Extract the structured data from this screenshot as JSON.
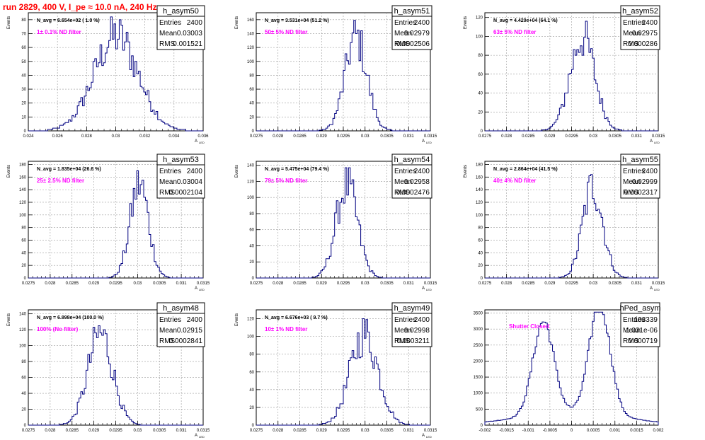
{
  "page_title": "run 2829,   400 V, I_pe ≈ 10.0 nA, 240 Hz",
  "chart_data": [
    {
      "type": "histogram",
      "title": "h_asym50",
      "ylabel": "Events",
      "xlabel": "A",
      "xlabel_sub": "LED",
      "stats": {
        "Entries": "2400",
        "Mean": "0.03003",
        "RMS": "0.001521"
      },
      "navg": "N_avg = 6.654e+02 ( 1.0 %)",
      "filter_label": "1± 0.1% ND filter",
      "xlim": [
        0.024,
        0.036
      ],
      "ylim": [
        0,
        85
      ],
      "xticks": [
        "0.024",
        "0.026",
        "0.028",
        "0.03",
        "0.032",
        "0.034",
        "0.036"
      ],
      "yticks": [
        "0",
        "10",
        "20",
        "30",
        "40",
        "50",
        "60",
        "70",
        "80"
      ],
      "mean": 0.03003,
      "rms": 0.001521,
      "entries": 2400,
      "peak": 83
    },
    {
      "type": "histogram",
      "title": "h_asym51",
      "ylabel": "Events",
      "xlabel": "A",
      "xlabel_sub": "LED",
      "stats": {
        "Entries": "2400",
        "Mean": "0.02979",
        "RMS": "0.0002506"
      },
      "navg": "N_avg = 3.531e+04 (51.2 %)",
      "filter_label": "50± 5% ND filter",
      "xlim": [
        0.0275,
        0.0315
      ],
      "ylim": [
        0,
        170
      ],
      "xticks": [
        "0.0275",
        "0.028",
        "0.0285",
        "0.029",
        "0.0295",
        "0.03",
        "0.0305",
        "0.031",
        "0.0315"
      ],
      "yticks": [
        "0",
        "20",
        "40",
        "60",
        "80",
        "100",
        "120",
        "140",
        "160"
      ],
      "mean": 0.02979,
      "rms": 0.0002506,
      "entries": 2400,
      "peak": 165
    },
    {
      "type": "histogram",
      "title": "h_asym52",
      "ylabel": "Events",
      "xlabel": "A",
      "xlabel_sub": "LED",
      "stats": {
        "Entries": "2400",
        "Mean": "0.02975",
        "RMS": "0.000286"
      },
      "navg": "N_avg = 4.420e+04 (64.1 %)",
      "filter_label": "63± 5% ND filter",
      "xlim": [
        0.0275,
        0.0315
      ],
      "ylim": [
        0,
        125
      ],
      "xticks": [
        "0.0275",
        "0.028",
        "0.0285",
        "0.029",
        "0.0295",
        "0.03",
        "0.0305",
        "0.031",
        "0.0315"
      ],
      "yticks": [
        "0",
        "20",
        "40",
        "60",
        "80",
        "100",
        "120"
      ],
      "mean": 0.02975,
      "rms": 0.000286,
      "entries": 2400,
      "peak": 120
    },
    {
      "type": "histogram",
      "title": "h_asym53",
      "ylabel": "Events",
      "xlabel": "A",
      "xlabel_sub": "LED",
      "stats": {
        "Entries": "2400",
        "Mean": "0.03004",
        "RMS": "0.0002104"
      },
      "navg": "N_avg = 1.835e+04 (26.6 %)",
      "filter_label": "25± 2.5% ND filter",
      "xlim": [
        0.0275,
        0.0315
      ],
      "ylim": [
        0,
        185
      ],
      "xticks": [
        "0.0275",
        "0.028",
        "0.0285",
        "0.029",
        "0.0295",
        "0.03",
        "0.0305",
        "0.031",
        "0.0315"
      ],
      "yticks": [
        "0",
        "20",
        "40",
        "60",
        "80",
        "100",
        "120",
        "140",
        "160",
        "180"
      ],
      "mean": 0.03004,
      "rms": 0.0002104,
      "entries": 2400,
      "peak": 182
    },
    {
      "type": "histogram",
      "title": "h_asym54",
      "ylabel": "Events",
      "xlabel": "A",
      "xlabel_sub": "LED",
      "stats": {
        "Entries": "2400",
        "Mean": "0.02958",
        "RMS": "0.0002476"
      },
      "navg": "N_avg = 5.475e+04 (79.4 %)",
      "filter_label": "79± 5% ND filter",
      "xlim": [
        0.0275,
        0.0315
      ],
      "ylim": [
        0,
        145
      ],
      "xticks": [
        "0.0275",
        "0.028",
        "0.0285",
        "0.029",
        "0.0295",
        "0.03",
        "0.0305",
        "0.031",
        "0.0315"
      ],
      "yticks": [
        "0",
        "20",
        "40",
        "60",
        "80",
        "100",
        "120",
        "140"
      ],
      "mean": 0.02958,
      "rms": 0.0002476,
      "entries": 2400,
      "peak": 140
    },
    {
      "type": "histogram",
      "title": "h_asym55",
      "ylabel": "Events",
      "xlabel": "A",
      "xlabel_sub": "LED",
      "stats": {
        "Entries": "2400",
        "Mean": "0.02999",
        "RMS": "0.0002317"
      },
      "navg": "N_avg = 2.864e+04 (41.5 %)",
      "filter_label": "40± 4% ND filter",
      "xlim": [
        0.0275,
        0.0315
      ],
      "ylim": [
        0,
        185
      ],
      "xticks": [
        "0.0275",
        "0.028",
        "0.0285",
        "0.029",
        "0.0295",
        "0.03",
        "0.0305",
        "0.031",
        "0.0315"
      ],
      "yticks": [
        "0",
        "20",
        "40",
        "60",
        "80",
        "100",
        "120",
        "140",
        "160",
        "180"
      ],
      "mean": 0.02999,
      "rms": 0.0002317,
      "entries": 2400,
      "peak": 178
    },
    {
      "type": "histogram",
      "title": "h_asym48",
      "ylabel": "Events",
      "xlabel": "A",
      "xlabel_sub": "LED",
      "stats": {
        "Entries": "2400",
        "Mean": "0.02915",
        "RMS": "0.0002841"
      },
      "navg": "N_avg = 6.898e+04 (100.0 %)",
      "filter_label": "100% (No filter)",
      "xlim": [
        0.0275,
        0.0315
      ],
      "ylim": [
        0,
        145
      ],
      "xticks": [
        "0.0275",
        "0.028",
        "0.0285",
        "0.029",
        "0.0295",
        "0.03",
        "0.0305",
        "0.031",
        "0.0315"
      ],
      "yticks": [
        "0",
        "20",
        "40",
        "60",
        "80",
        "100",
        "120",
        "140"
      ],
      "mean": 0.02915,
      "rms": 0.0002841,
      "entries": 2400,
      "peak": 140
    },
    {
      "type": "histogram",
      "title": "h_asym49",
      "ylabel": "Events",
      "xlabel": "A",
      "xlabel_sub": "LED",
      "stats": {
        "Entries": "2400",
        "Mean": "0.02998",
        "RMS": "0.0003211"
      },
      "navg": "N_avg = 6.676e+03 ( 9.7 %)",
      "filter_label": "10± 1% ND filter",
      "xlim": [
        0.0275,
        0.0315
      ],
      "ylim": [
        0,
        130
      ],
      "xticks": [
        "0.0275",
        "0.028",
        "0.0285",
        "0.029",
        "0.0295",
        "0.03",
        "0.0305",
        "0.031",
        "0.0315"
      ],
      "yticks": [
        "0",
        "20",
        "40",
        "60",
        "80",
        "100",
        "120"
      ],
      "mean": 0.02998,
      "rms": 0.0003211,
      "entries": 2400,
      "peak": 125
    },
    {
      "type": "histogram",
      "title": "hPed_asym",
      "ylabel": "",
      "xlabel": "",
      "xlabel_sub": "",
      "stats": {
        "Entries": "103339",
        "Mean": "1.031e-06",
        "RMS": "0.000719"
      },
      "navg": "",
      "filter_label": "Shutter Closed",
      "xlim": [
        -0.002,
        0.002
      ],
      "ylim": [
        0,
        3600
      ],
      "xticks": [
        "-0.002",
        "-0.0015",
        "-0.001",
        "-0.0005",
        "0",
        "0.0005",
        "0.001",
        "0.0015",
        "0.002"
      ],
      "yticks": [
        "0",
        "500",
        "1000",
        "1500",
        "2000",
        "2500",
        "3000",
        "3500"
      ],
      "bimodal": [
        {
          "mu": -0.00065,
          "sigma": 0.00024,
          "peak": 2900
        },
        {
          "mu": 0.00065,
          "sigma": 0.00024,
          "peak": 3450
        }
      ],
      "entries": 103339,
      "peak": 3450
    }
  ]
}
